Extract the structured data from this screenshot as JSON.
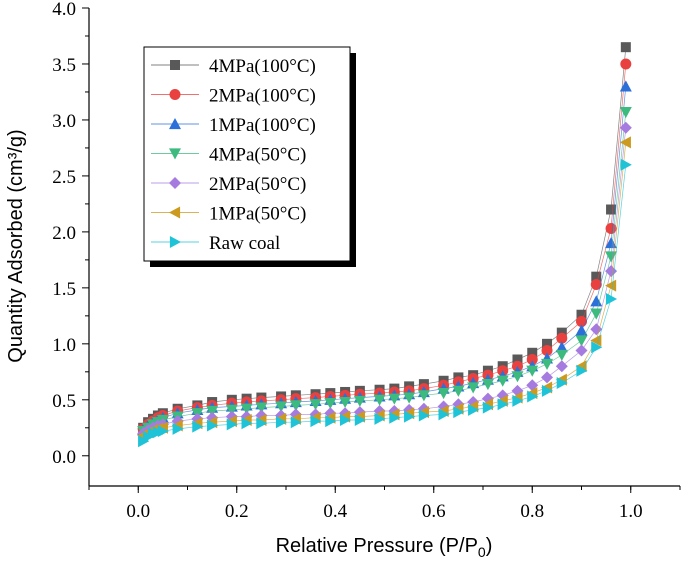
{
  "chart_data": {
    "type": "scatter",
    "title": "",
    "xlabel": "Relative Pressure (P/P",
    "xlabel_sub": "0",
    "xlabel_close": ")",
    "ylabel": "Quantity Adsorbed (cm³/g)",
    "xlim": [
      -0.1,
      1.1
    ],
    "ylim": [
      -0.27,
      4.0
    ],
    "xticks": [
      0.0,
      0.2,
      0.4,
      0.6,
      0.8,
      1.0
    ],
    "xtick_labels": [
      "0.0",
      "0.2",
      "0.4",
      "0.6",
      "0.8",
      "1.0"
    ],
    "yticks": [
      0.0,
      0.5,
      1.0,
      1.5,
      2.0,
      2.5,
      3.0,
      3.5,
      4.0
    ],
    "ytick_labels": [
      "0.0",
      "0.5",
      "1.0",
      "1.5",
      "2.0",
      "2.5",
      "3.0",
      "3.5",
      "4.0"
    ],
    "legend_position": "top-left",
    "x": [
      0.01,
      0.02,
      0.03,
      0.04,
      0.05,
      0.08,
      0.12,
      0.15,
      0.19,
      0.22,
      0.25,
      0.29,
      0.32,
      0.36,
      0.39,
      0.42,
      0.45,
      0.49,
      0.52,
      0.55,
      0.58,
      0.62,
      0.65,
      0.68,
      0.71,
      0.74,
      0.77,
      0.8,
      0.83,
      0.86,
      0.9,
      0.93,
      0.96,
      0.99
    ],
    "series": [
      {
        "name": "4MPa(100°C)",
        "color": "#595959",
        "marker": "square",
        "values": [
          0.25,
          0.3,
          0.33,
          0.36,
          0.38,
          0.42,
          0.45,
          0.48,
          0.5,
          0.51,
          0.52,
          0.53,
          0.54,
          0.55,
          0.56,
          0.57,
          0.58,
          0.59,
          0.6,
          0.62,
          0.64,
          0.67,
          0.7,
          0.72,
          0.76,
          0.8,
          0.86,
          0.92,
          1.0,
          1.1,
          1.26,
          1.6,
          2.2,
          3.65
        ]
      },
      {
        "name": "2MPa(100°C)",
        "color": "#e8413f",
        "marker": "circle",
        "values": [
          0.24,
          0.28,
          0.31,
          0.34,
          0.36,
          0.4,
          0.43,
          0.45,
          0.47,
          0.48,
          0.49,
          0.5,
          0.51,
          0.52,
          0.53,
          0.54,
          0.55,
          0.56,
          0.57,
          0.58,
          0.6,
          0.63,
          0.66,
          0.69,
          0.72,
          0.76,
          0.8,
          0.86,
          0.94,
          1.05,
          1.2,
          1.53,
          2.03,
          3.5
        ]
      },
      {
        "name": "1MPa(100°C)",
        "color": "#2c6fd9",
        "marker": "triangle-up",
        "values": [
          0.23,
          0.27,
          0.3,
          0.32,
          0.34,
          0.38,
          0.41,
          0.43,
          0.44,
          0.45,
          0.46,
          0.47,
          0.48,
          0.49,
          0.5,
          0.51,
          0.52,
          0.53,
          0.54,
          0.55,
          0.57,
          0.6,
          0.62,
          0.65,
          0.68,
          0.71,
          0.75,
          0.8,
          0.87,
          0.97,
          1.12,
          1.38,
          1.9,
          3.3
        ]
      },
      {
        "name": "4MPa(50°C)",
        "color": "#3dbb7f",
        "marker": "triangle-down",
        "values": [
          0.22,
          0.25,
          0.28,
          0.3,
          0.32,
          0.35,
          0.38,
          0.4,
          0.41,
          0.42,
          0.43,
          0.44,
          0.45,
          0.46,
          0.47,
          0.48,
          0.49,
          0.5,
          0.51,
          0.52,
          0.54,
          0.56,
          0.58,
          0.61,
          0.64,
          0.67,
          0.71,
          0.76,
          0.82,
          0.9,
          1.03,
          1.27,
          1.78,
          3.07
        ]
      },
      {
        "name": "2MPa(50°C)",
        "color": "#a57be0",
        "marker": "diamond",
        "values": [
          0.2,
          0.23,
          0.25,
          0.27,
          0.28,
          0.31,
          0.33,
          0.34,
          0.35,
          0.35,
          0.36,
          0.36,
          0.37,
          0.37,
          0.38,
          0.38,
          0.39,
          0.4,
          0.4,
          0.41,
          0.42,
          0.44,
          0.46,
          0.48,
          0.51,
          0.54,
          0.58,
          0.63,
          0.7,
          0.8,
          0.94,
          1.13,
          1.65,
          2.93
        ]
      },
      {
        "name": "1MPa(50°C)",
        "color": "#cc9a1e",
        "marker": "triangle-left",
        "values": [
          0.18,
          0.21,
          0.23,
          0.24,
          0.25,
          0.27,
          0.29,
          0.3,
          0.31,
          0.32,
          0.32,
          0.33,
          0.33,
          0.34,
          0.34,
          0.35,
          0.35,
          0.36,
          0.37,
          0.38,
          0.39,
          0.4,
          0.42,
          0.44,
          0.46,
          0.49,
          0.52,
          0.56,
          0.61,
          0.68,
          0.8,
          1.03,
          1.52,
          2.8
        ]
      },
      {
        "name": "Raw coal",
        "color": "#1fc3d8",
        "marker": "triangle-right",
        "values": [
          0.13,
          0.17,
          0.2,
          0.21,
          0.22,
          0.24,
          0.26,
          0.27,
          0.28,
          0.29,
          0.29,
          0.3,
          0.3,
          0.31,
          0.31,
          0.32,
          0.32,
          0.33,
          0.34,
          0.35,
          0.36,
          0.37,
          0.39,
          0.41,
          0.43,
          0.46,
          0.49,
          0.53,
          0.58,
          0.65,
          0.76,
          0.97,
          1.4,
          2.6
        ]
      }
    ]
  }
}
